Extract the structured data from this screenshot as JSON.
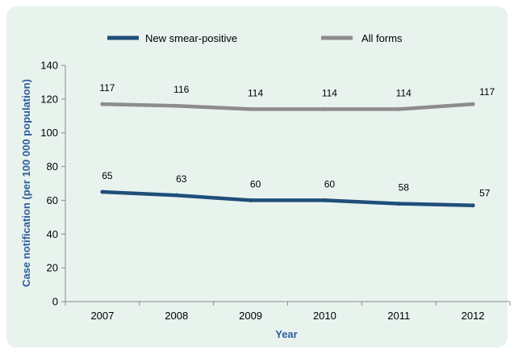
{
  "chart_data": {
    "type": "line",
    "title": "",
    "xlabel": "Year",
    "ylabel": "Case notification (per 100 000 population)",
    "categories": [
      "2007",
      "2008",
      "2009",
      "2010",
      "2011",
      "2012"
    ],
    "ylim": [
      0,
      140
    ],
    "yticks": [
      0,
      20,
      40,
      60,
      80,
      100,
      120,
      140
    ],
    "grid": false,
    "legend_position": "top",
    "series": [
      {
        "name": "New smear-positive",
        "color": "#1f4e79",
        "values": [
          65,
          63,
          60,
          60,
          58,
          57
        ],
        "labels": [
          "65",
          "63",
          "60",
          "60",
          "58",
          "57"
        ]
      },
      {
        "name": "All forms",
        "color": "#8c8c8c",
        "values": [
          117,
          116,
          114,
          114,
          114,
          117
        ],
        "labels": [
          "117",
          "116",
          "114",
          "114",
          "114",
          "117"
        ]
      }
    ],
    "background_color": "#e8f3ee",
    "axis_title_color": "#2e5c9a"
  }
}
